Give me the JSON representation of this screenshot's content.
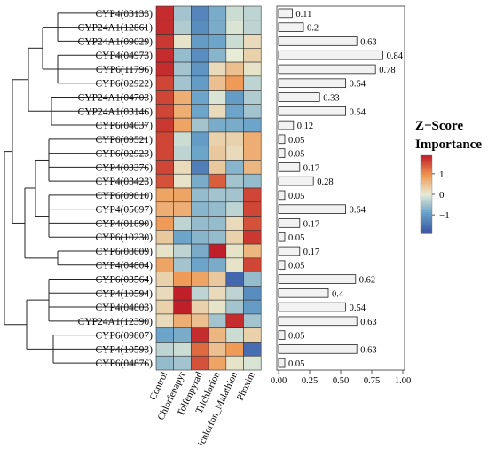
{
  "chart_data": {
    "type": "heatmap",
    "genes": [
      "CYP4(03133)",
      "CYP24A1(12861)",
      "CYP24A1(09029)",
      "CYP4(04973)",
      "CYP6(11796)",
      "CYP6(02922)",
      "CYP24A1(04703)",
      "CYP24A1(03146)",
      "CYP6(04037)",
      "CYP6(09521)",
      "CYP6(02923)",
      "CYP4(03376)",
      "CYP4(03423)",
      "CYP6(09810)",
      "CYP4(05697)",
      "CYP4(01890)",
      "CYP6(10230)",
      "CYP6(08009)",
      "CYP4(04804)",
      "CYP6(03564)",
      "CYP4(10594)",
      "CYP4(04803)",
      "CYP24A1(12390)",
      "CYP6(09807)",
      "CYP4(10593)",
      "CYP6(04876)"
    ],
    "conditions": [
      "Control",
      "Chlorfenapyr",
      "Tolfenpyrad",
      "Trichlorfon",
      "Trichlorfon_Malathion",
      "Phoxim"
    ],
    "zscores": [
      [
        1.8,
        -0.5,
        -1.3,
        -0.8,
        -0.2,
        -0.3
      ],
      [
        1.8,
        -0.4,
        -1.2,
        -0.8,
        -0.1,
        -0.3
      ],
      [
        1.7,
        0.1,
        -1.0,
        -0.9,
        -0.2,
        0.2
      ],
      [
        1.8,
        -0.6,
        -1.2,
        -0.7,
        0.0,
        0.3
      ],
      [
        1.8,
        -0.5,
        -1.1,
        0.2,
        0.5,
        0.1
      ],
      [
        1.6,
        -0.5,
        -1.0,
        0.5,
        0.9,
        -0.3
      ],
      [
        1.6,
        0.7,
        -0.9,
        -0.1,
        -1.0,
        -0.4
      ],
      [
        1.6,
        0.7,
        -0.9,
        0.2,
        -0.9,
        -0.5
      ],
      [
        1.7,
        0.8,
        -0.5,
        -0.8,
        -0.8,
        -0.9
      ],
      [
        1.6,
        -0.2,
        -1.0,
        0.3,
        0.3,
        0.7
      ],
      [
        1.6,
        -0.3,
        -0.9,
        0.4,
        0.2,
        0.7
      ],
      [
        1.6,
        0.2,
        -1.4,
        0.4,
        -0.7,
        0.6
      ],
      [
        1.5,
        0.1,
        -0.8,
        1.4,
        -0.5,
        -0.6
      ],
      [
        0.8,
        0.8,
        -0.6,
        -0.5,
        -0.5,
        1.6
      ],
      [
        0.7,
        0.7,
        -0.7,
        -0.6,
        -0.3,
        1.6
      ],
      [
        0.9,
        -0.3,
        -0.6,
        -0.6,
        0.2,
        1.5
      ],
      [
        0.4,
        -0.9,
        -0.7,
        -0.6,
        0.3,
        1.7
      ],
      [
        0.1,
        -0.3,
        -0.8,
        1.9,
        0.1,
        0.6
      ],
      [
        0.8,
        -0.5,
        -0.9,
        -0.8,
        0.1,
        1.6
      ],
      [
        0.3,
        0.9,
        0.8,
        0.4,
        -1.7,
        -0.6
      ],
      [
        0.2,
        1.9,
        -0.3,
        0.2,
        -0.3,
        -1.2
      ],
      [
        0.3,
        1.9,
        0.3,
        0.1,
        -0.5,
        -1.0
      ],
      [
        0.2,
        0.7,
        0.5,
        -0.5,
        1.8,
        -0.5
      ],
      [
        -0.9,
        -0.8,
        1.8,
        0.6,
        -0.2,
        0.3
      ],
      [
        -0.3,
        -0.2,
        1.3,
        0.5,
        0.9,
        -1.6
      ],
      [
        -0.6,
        -0.5,
        1.5,
        0.8,
        0.1,
        -0.1
      ]
    ],
    "importance": [
      0.11,
      0.2,
      0.63,
      0.84,
      0.78,
      0.54,
      0.33,
      0.54,
      0.12,
      0.05,
      0.05,
      0.17,
      0.28,
      0.05,
      0.54,
      0.17,
      0.05,
      0.17,
      0.05,
      0.62,
      0.4,
      0.54,
      0.63,
      0.05,
      0.63,
      0.05
    ],
    "importance_labels": [
      "0.11",
      "0.2",
      "0.63",
      "0.84",
      "0.78",
      "0.54",
      "0.33",
      "0.54",
      "0.12",
      "0.05",
      "0.05",
      "0.17",
      "0.28",
      "0.05",
      "0.54",
      "0.17",
      "0.05",
      "0.17",
      "0.05",
      "0.62",
      "0.4",
      "0.54",
      "0.63",
      "0.05",
      "0.63",
      "0.05"
    ],
    "importance_axis": {
      "xlim": [
        0,
        1
      ],
      "ticks": [
        0,
        0.25,
        0.5,
        0.75,
        1
      ],
      "tick_labels": [
        "0.00",
        "0.25",
        "0.50",
        "0.75",
        "1.00"
      ]
    },
    "legend": {
      "title_line1": "Z−Score",
      "title_line2": "Importance",
      "ticks": [
        1,
        0,
        -1
      ],
      "tick_labels": [
        "1",
        "0",
        "−1"
      ],
      "range": [
        -1.9,
        1.9
      ],
      "placement": "right"
    },
    "colors": {
      "low": "#3a56a6",
      "mid": "#e6ecd6",
      "high": "#c01f2a"
    }
  }
}
